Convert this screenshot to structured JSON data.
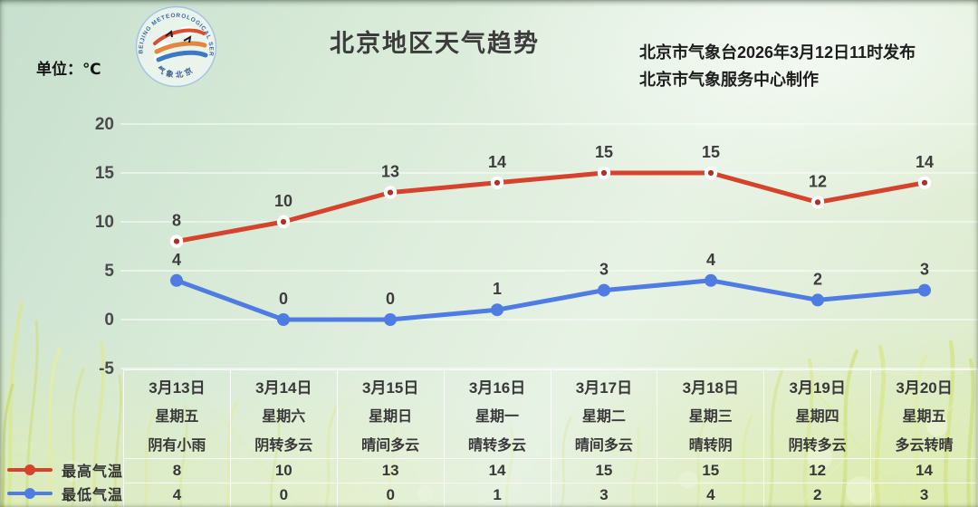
{
  "header": {
    "unit_label": "单位：℃",
    "title": "北京地区天气趋势",
    "issued_by": "北京市气象台2026年3月12日11时发布",
    "produced_by": "北京市气象服务中心制作",
    "logo": {
      "ring_text": "BEIJING METEOROLOGICAL SERVICE",
      "bottom_text": "气象北京"
    }
  },
  "chart_data": {
    "type": "line",
    "title": "北京地区天气趋势",
    "unit": "℃",
    "x_categories": [
      "3月13日",
      "3月14日",
      "3月15日",
      "3月16日",
      "3月17日",
      "3月18日",
      "3月19日",
      "3月20日"
    ],
    "weekdays": [
      "星期五",
      "星期六",
      "星期日",
      "星期一",
      "星期二",
      "星期三",
      "星期四",
      "星期五"
    ],
    "weather": [
      "阴有小雨",
      "阴转多云",
      "晴间多云",
      "晴转多云",
      "晴间多云",
      "晴转阴",
      "阴转多云",
      "多云转晴"
    ],
    "series": [
      {
        "name": "最高气温",
        "color": "#d6432c",
        "marker": "open-circle",
        "marker_core": "#a83426",
        "values": [
          8,
          10,
          13,
          14,
          15,
          15,
          12,
          14
        ]
      },
      {
        "name": "最低气温",
        "color": "#4e7ce2",
        "marker": "filled-circle",
        "values": [
          4,
          0,
          0,
          1,
          3,
          4,
          2,
          3
        ]
      }
    ],
    "y_ticks": [
      20,
      15,
      10,
      5,
      0,
      -5
    ],
    "ylim": [
      -5,
      22
    ],
    "grid": true,
    "legend_position": "bottom-left",
    "grid_color": "rgba(255,255,255,0.65)"
  }
}
